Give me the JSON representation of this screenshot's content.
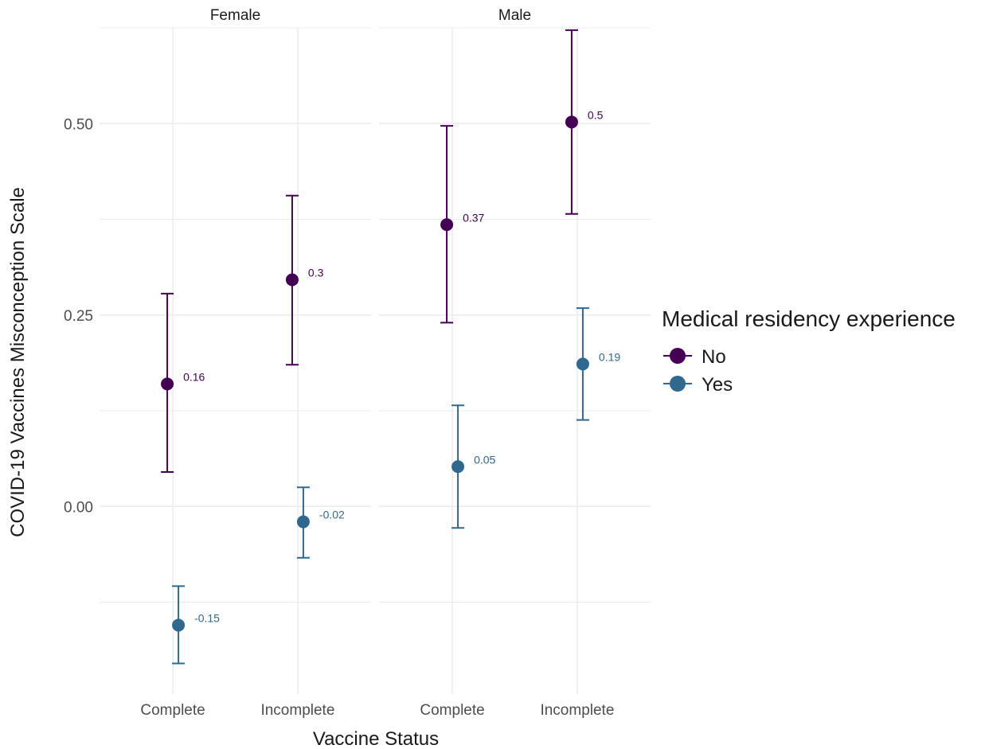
{
  "chart_data": {
    "type": "scatter",
    "subtype": "point-errorbar-facet",
    "facets": [
      "Female",
      "Male"
    ],
    "categories": [
      "Complete",
      "Incomplete"
    ],
    "xlabel": "Vaccine Status",
    "ylabel": "COVID-19 Vaccines Misconception Scale",
    "ylim": [
      -0.245,
      0.625
    ],
    "yticks": [
      0.0,
      0.25,
      0.5
    ],
    "ytick_labels": [
      "0.00",
      "0.25",
      "0.50"
    ],
    "grid": true,
    "legend": {
      "title": "Medical residency experience",
      "placement": "right",
      "entries": [
        "No",
        "Yes"
      ]
    },
    "series": [
      {
        "name": "No",
        "color": "#440154",
        "points": [
          {
            "facet": "Female",
            "x": "Complete",
            "y": 0.16,
            "lower": 0.045,
            "upper": 0.278,
            "label": "0.16"
          },
          {
            "facet": "Female",
            "x": "Incomplete",
            "y": 0.296,
            "lower": 0.185,
            "upper": 0.406,
            "label": "0.3"
          },
          {
            "facet": "Male",
            "x": "Complete",
            "y": 0.368,
            "lower": 0.24,
            "upper": 0.497,
            "label": "0.37"
          },
          {
            "facet": "Male",
            "x": "Incomplete",
            "y": 0.502,
            "lower": 0.382,
            "upper": 0.622,
            "label": "0.5"
          }
        ]
      },
      {
        "name": "Yes",
        "color": "#31688e",
        "points": [
          {
            "facet": "Female",
            "x": "Complete",
            "y": -0.155,
            "lower": -0.205,
            "upper": -0.104,
            "label": "-0.15"
          },
          {
            "facet": "Female",
            "x": "Incomplete",
            "y": -0.02,
            "lower": -0.067,
            "upper": 0.025,
            "label": "-0.02"
          },
          {
            "facet": "Male",
            "x": "Complete",
            "y": 0.052,
            "lower": -0.028,
            "upper": 0.132,
            "label": "0.05"
          },
          {
            "facet": "Male",
            "x": "Incomplete",
            "y": 0.186,
            "lower": 0.113,
            "upper": 0.259,
            "label": "0.19"
          }
        ]
      }
    ]
  }
}
